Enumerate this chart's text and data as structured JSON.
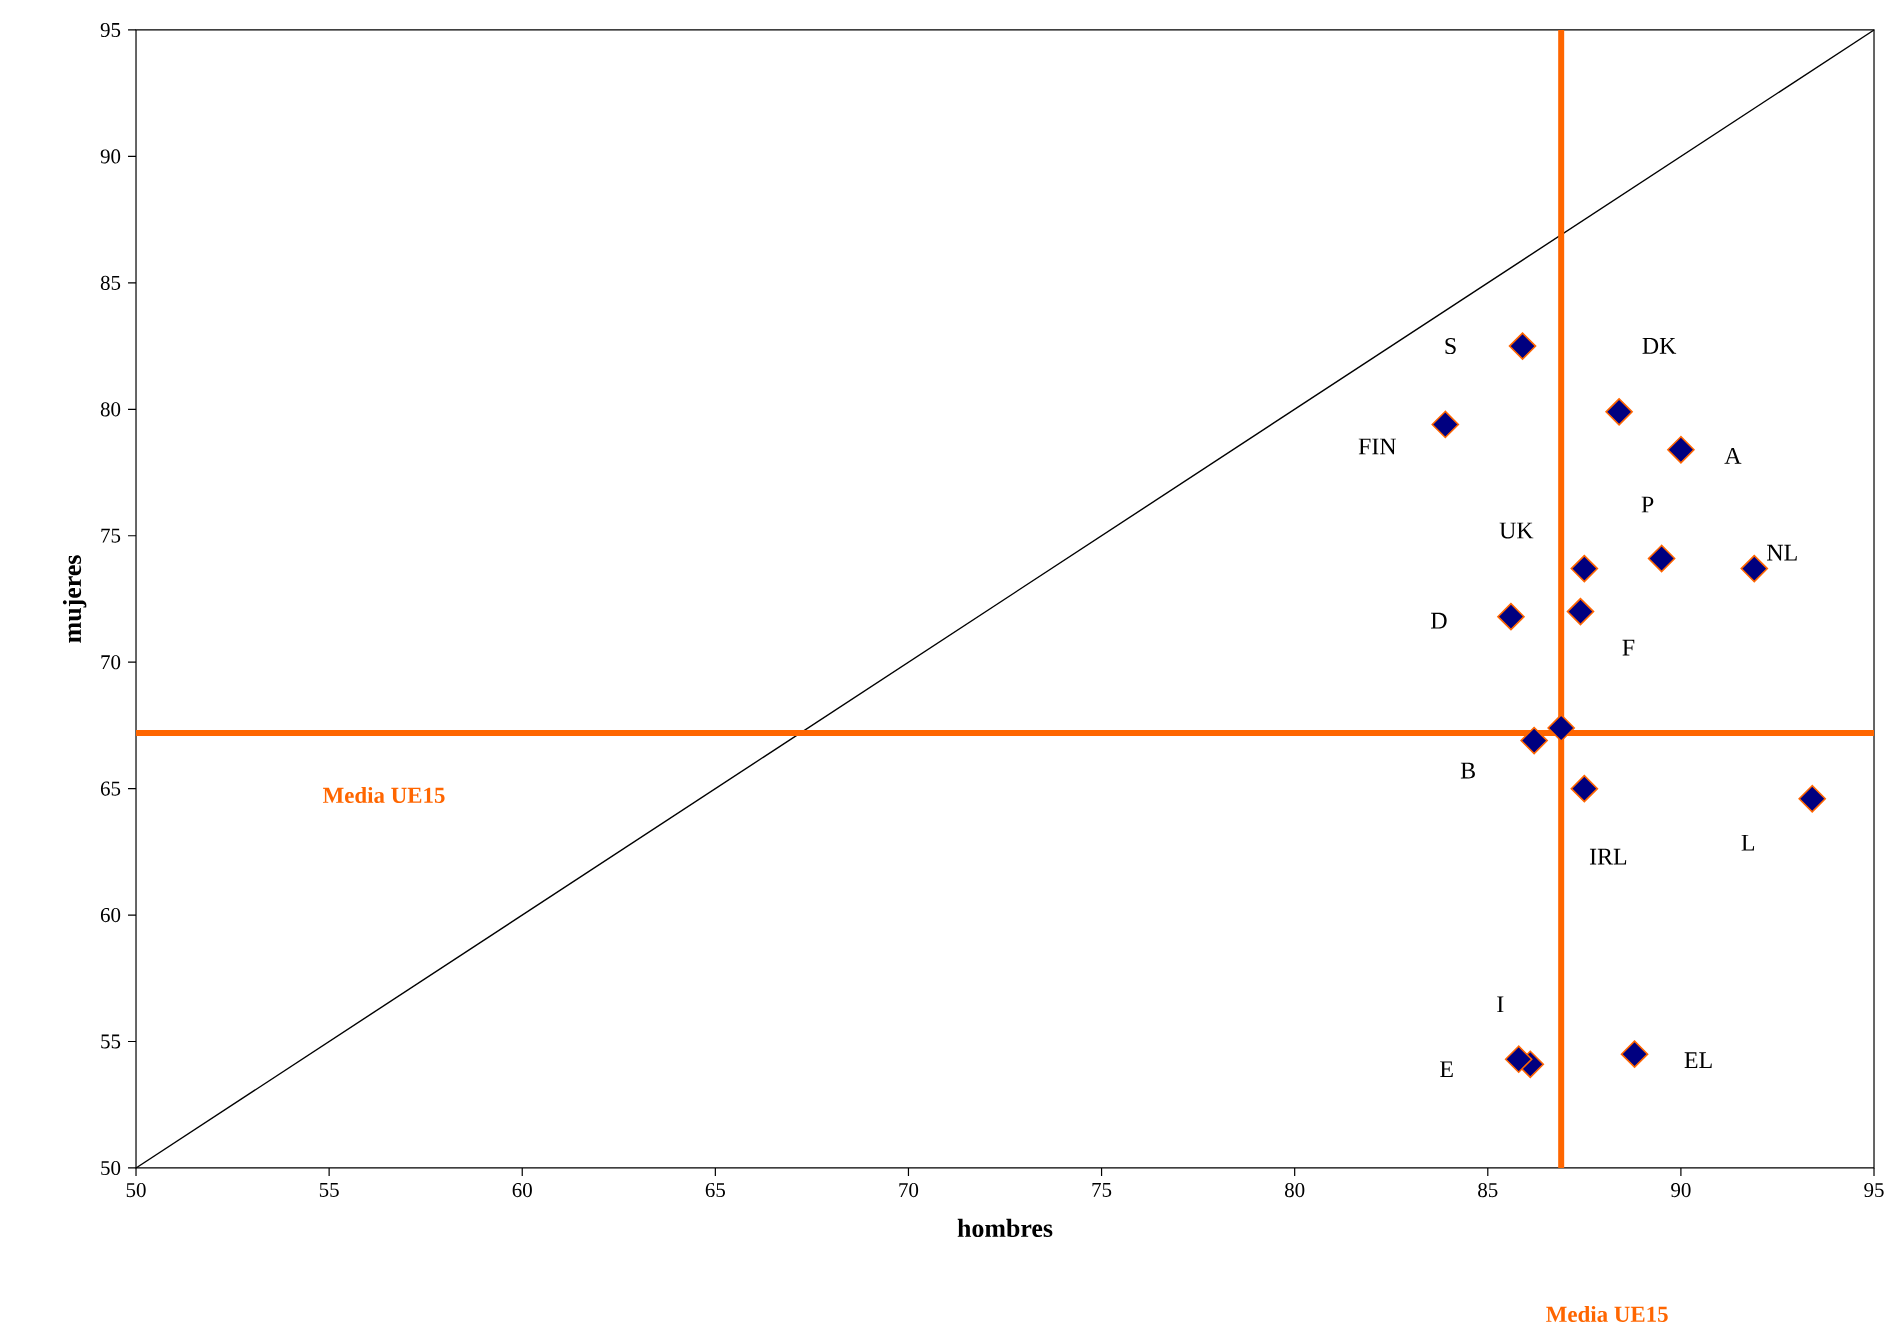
{
  "chart_data": {
    "type": "scatter",
    "xlabel": "hombres",
    "ylabel": "mujeres",
    "xlim": [
      50,
      95
    ],
    "ylim": [
      50,
      95
    ],
    "xticks": [
      50,
      55,
      60,
      65,
      70,
      75,
      80,
      85,
      90,
      95
    ],
    "yticks": [
      50,
      55,
      60,
      65,
      70,
      75,
      80,
      85,
      90,
      95
    ],
    "marker": "diamond",
    "grid": false,
    "series": [
      {
        "type": "line",
        "marker": "none",
        "color": "#000000",
        "x": [
          50,
          95
        ],
        "values": [
          50,
          95
        ]
      },
      {
        "color": "#000080",
        "x": [
          85.9,
          88.4,
          83.9,
          90.0,
          87.5,
          89.5,
          91.9,
          85.6,
          87.4,
          86.9,
          86.2,
          87.5,
          93.4,
          86.1,
          85.8,
          88.8
        ],
        "values": [
          82.5,
          79.9,
          79.4,
          78.4,
          73.7,
          74.1,
          73.7,
          71.8,
          72.0,
          67.4,
          66.9,
          65.0,
          64.6,
          54.1,
          54.3,
          54.5
        ]
      }
    ],
    "ref_lines": [
      {
        "axis": "x",
        "value": 86.9,
        "label": "Media UE15",
        "color": "#ff6600"
      },
      {
        "axis": "y",
        "value": 67.2,
        "label": "Media UE15",
        "color": "#ff6600"
      }
    ],
    "annotations": [
      {
        "text": "S",
        "x": 85.9,
        "y": 82.5
      },
      {
        "text": "DK",
        "x": 88.4,
        "y": 79.9
      },
      {
        "text": "FIN",
        "x": 83.9,
        "y": 79.4
      },
      {
        "text": "A",
        "x": 90.0,
        "y": 78.4
      },
      {
        "text": "UK",
        "x": 87.5,
        "y": 73.7
      },
      {
        "text": "P",
        "x": 89.5,
        "y": 74.1
      },
      {
        "text": "NL",
        "x": 91.9,
        "y": 73.7
      },
      {
        "text": "D",
        "x": 85.6,
        "y": 71.8
      },
      {
        "text": "F",
        "x": 87.4,
        "y": 72.0
      },
      {
        "text": "B",
        "x": 86.2,
        "y": 66.9
      },
      {
        "text": "IRL",
        "x": 87.5,
        "y": 65.0
      },
      {
        "text": "L",
        "x": 93.4,
        "y": 64.6
      },
      {
        "text": "I",
        "x": 86.1,
        "y": 54.1
      },
      {
        "text": "E",
        "x": 85.8,
        "y": 54.3
      },
      {
        "text": "EL",
        "x": 88.8,
        "y": 54.5
      }
    ]
  }
}
